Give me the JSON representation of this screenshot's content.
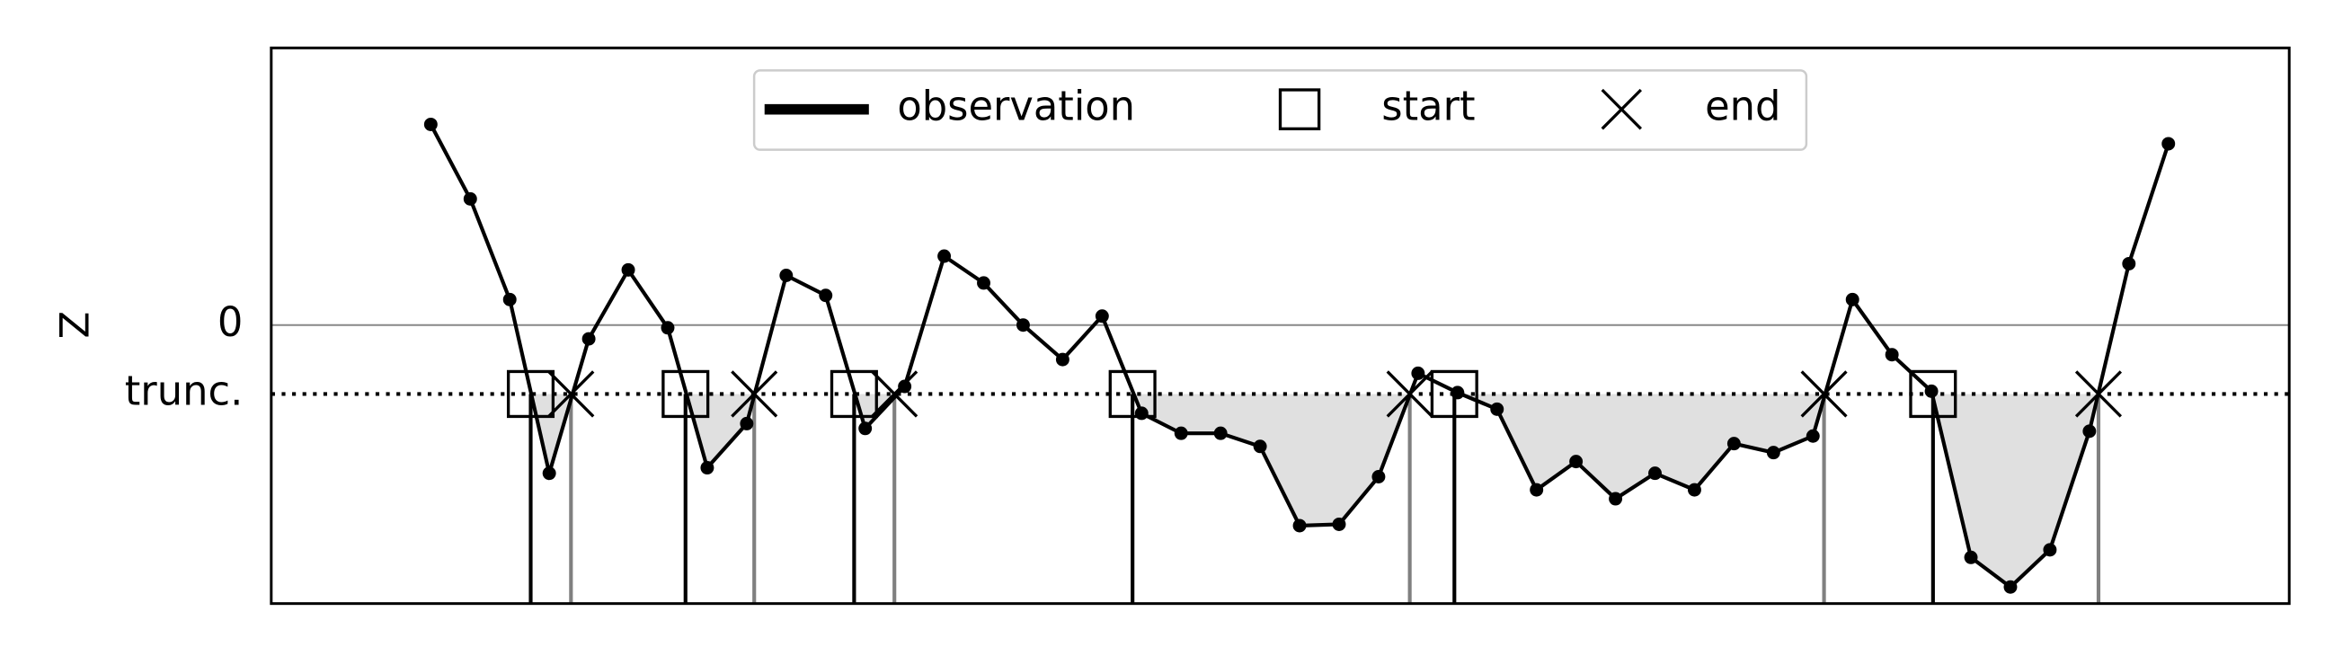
{
  "chart_data": {
    "type": "line",
    "ylabel": "Z",
    "x": [
      0,
      1,
      2,
      3,
      4,
      5,
      6,
      7,
      8,
      9,
      10,
      11,
      12,
      13,
      14,
      15,
      16,
      17,
      18,
      19,
      20,
      21,
      22,
      23,
      24,
      25,
      26,
      27,
      28,
      29,
      30,
      31,
      32,
      33,
      34,
      35,
      36,
      37,
      38,
      39,
      40,
      41,
      42,
      43,
      44
    ],
    "series": [
      {
        "name": "observation",
        "color": "#000000",
        "values": [
          2.91,
          1.83,
          0.37,
          -2.15,
          -0.2,
          0.8,
          -0.04,
          -2.07,
          -1.43,
          0.72,
          0.43,
          -1.5,
          -0.89,
          1.0,
          0.61,
          0,
          -0.5,
          0.13,
          -1.28,
          -1.57,
          -1.57,
          -1.76,
          -2.91,
          -2.89,
          -2.2,
          -0.7,
          -0.98,
          -1.22,
          -2.39,
          -1.98,
          -2.52,
          -2.15,
          -2.39,
          -1.72,
          -1.85,
          -1.61,
          0.37,
          -0.43,
          -0.96,
          -3.37,
          -3.8,
          -3.26,
          -1.54,
          0.89,
          2.63
        ]
      }
    ],
    "starts": {
      "name": "start",
      "x": [
        2.53,
        6.45,
        10.72,
        17.77,
        25.92,
        38.04
      ]
    },
    "ends": {
      "name": "end",
      "x": [
        3.55,
        8.19,
        11.74,
        24.79,
        35.28,
        42.23
      ]
    },
    "xlim": [
      -4.04,
      47.06
    ],
    "ylim": [
      -4.04,
      4.02
    ],
    "yticks": [
      0,
      {
        "value": -1,
        "label": "trunc."
      }
    ],
    "legend": "upper center",
    "shade_color": "#e0e0e0"
  }
}
